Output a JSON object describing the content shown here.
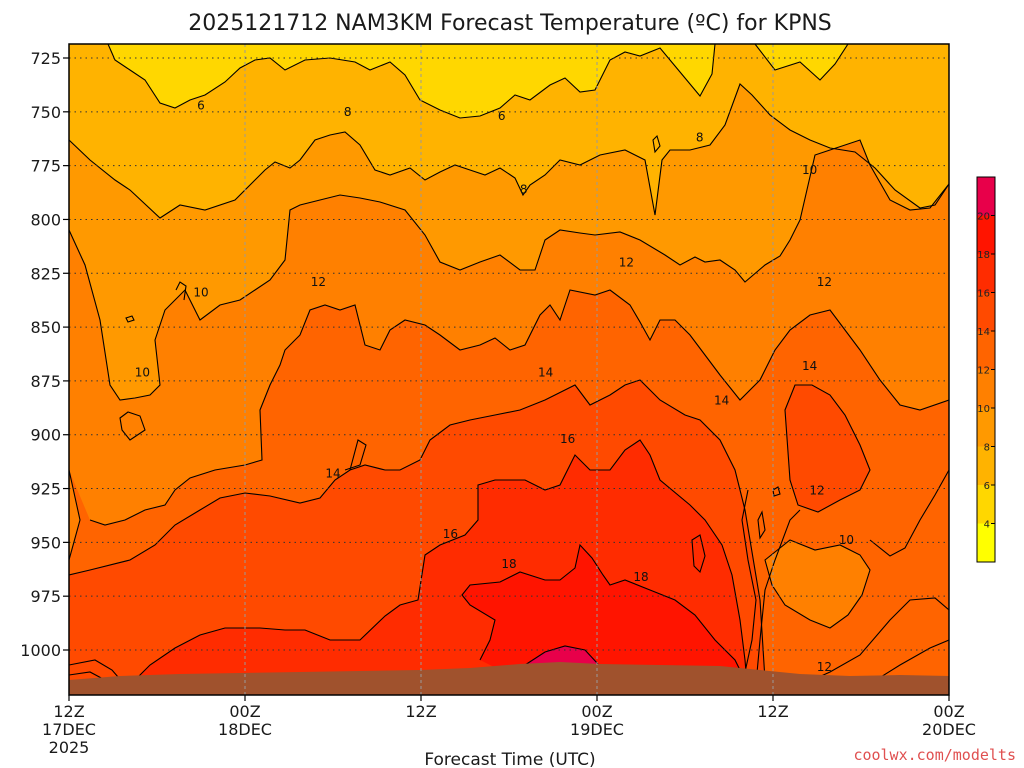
{
  "chart_data": {
    "type": "heatmap",
    "title": "2025121712 NAM3KM Forecast Temperature (ºC) for KPNS",
    "xlabel": "Forecast Time (UTC)",
    "ylabel": "",
    "credit": "coolwx.com/modelts",
    "x_ticks": [
      {
        "hours": 0,
        "line1": "12Z",
        "line2": "17DEC",
        "line3": "2025"
      },
      {
        "hours": 12,
        "line1": "00Z",
        "line2": "18DEC",
        "line3": ""
      },
      {
        "hours": 24,
        "line1": "12Z",
        "line2": "",
        "line3": ""
      },
      {
        "hours": 36,
        "line1": "00Z",
        "line2": "19DEC",
        "line3": ""
      },
      {
        "hours": 48,
        "line1": "12Z",
        "line2": "",
        "line3": ""
      },
      {
        "hours": 60,
        "line1": "00Z",
        "line2": "20DEC",
        "line3": ""
      }
    ],
    "xlim_hours": [
      0,
      60
    ],
    "y_ticks": [
      725,
      750,
      775,
      800,
      825,
      850,
      875,
      900,
      925,
      950,
      975,
      1000
    ],
    "y_unit": "hPa",
    "colorbar": {
      "ticks": [
        4,
        6,
        8,
        10,
        12,
        14,
        16,
        18,
        20
      ],
      "colors": [
        "#ffff00",
        "#ffd700",
        "#ffb300",
        "#ff9900",
        "#ff8000",
        "#ff6400",
        "#ff4a00",
        "#ff2c00",
        "#ff1400",
        "#e8004a"
      ]
    },
    "contour_labels": [
      {
        "text": "6",
        "hours": 9.0,
        "hPa": 747
      },
      {
        "text": "6",
        "hours": 29.5,
        "hPa": 752
      },
      {
        "text": "8",
        "hours": 19.0,
        "hPa": 750
      },
      {
        "text": "8",
        "hours": 31.0,
        "hPa": 786
      },
      {
        "text": "8",
        "hours": 43.0,
        "hPa": 762
      },
      {
        "text": "10",
        "hours": 9.0,
        "hPa": 834
      },
      {
        "text": "10",
        "hours": 5.0,
        "hPa": 871
      },
      {
        "text": "10",
        "hours": 50.5,
        "hPa": 777
      },
      {
        "text": "10",
        "hours": 53.0,
        "hPa": 949
      },
      {
        "text": "12",
        "hours": 17.0,
        "hPa": 829
      },
      {
        "text": "12",
        "hours": 38.0,
        "hPa": 820
      },
      {
        "text": "12",
        "hours": 51.5,
        "hPa": 829
      },
      {
        "text": "12",
        "hours": 51.0,
        "hPa": 926
      },
      {
        "text": "12",
        "hours": 51.5,
        "hPa": 1008
      },
      {
        "text": "14",
        "hours": 18.0,
        "hPa": 918
      },
      {
        "text": "14",
        "hours": 32.5,
        "hPa": 871
      },
      {
        "text": "14",
        "hours": 44.5,
        "hPa": 884
      },
      {
        "text": "14",
        "hours": 50.5,
        "hPa": 868
      },
      {
        "text": "16",
        "hours": 26.0,
        "hPa": 946
      },
      {
        "text": "16",
        "hours": 34.0,
        "hPa": 902
      },
      {
        "text": "18",
        "hours": 30.0,
        "hPa": 960
      },
      {
        "text": "18",
        "hours": 39.0,
        "hPa": 966
      }
    ]
  }
}
